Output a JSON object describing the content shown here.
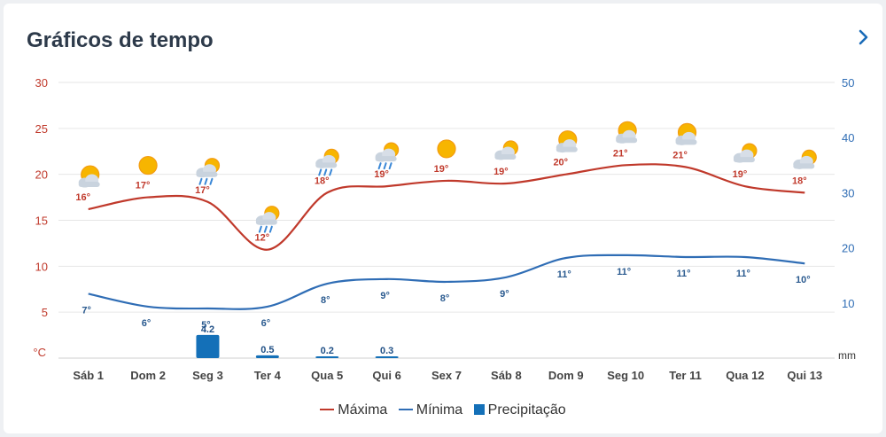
{
  "header": {
    "title": "Gráficos de tempo",
    "next_icon": "chevron-right-icon"
  },
  "chart_data": {
    "type": "line",
    "categories": [
      "Sáb 1",
      "Dom 2",
      "Seg 3",
      "Ter 4",
      "Qua 5",
      "Qui 6",
      "Sex 7",
      "Sáb 8",
      "Dom 9",
      "Seg 10",
      "Ter 11",
      "Qua 12",
      "Qui 13"
    ],
    "series": [
      {
        "name": "Máxima",
        "type": "line",
        "axis": "temperature",
        "color": "#c0392b",
        "values": [
          16,
          17,
          17,
          12,
          18,
          19,
          19,
          19,
          20,
          21,
          21,
          19,
          18
        ],
        "data_values": [
          16.2,
          17.5,
          17.0,
          11.8,
          18.0,
          18.7,
          19.3,
          19.0,
          20.0,
          21.0,
          20.8,
          18.7,
          18.0
        ]
      },
      {
        "name": "Mínima",
        "type": "line",
        "axis": "temperature",
        "color": "#2f6db5",
        "values": [
          7,
          6,
          5,
          6,
          8,
          9,
          8,
          9,
          11,
          11,
          11,
          11,
          10
        ],
        "data_values": [
          7.0,
          5.6,
          5.4,
          5.6,
          8.1,
          8.6,
          8.3,
          8.8,
          10.9,
          11.2,
          11.0,
          11.0,
          10.3
        ]
      },
      {
        "name": "Precipitação",
        "type": "bar",
        "axis": "precipitation",
        "color": "#1470b8",
        "values": [
          null,
          null,
          4.2,
          0.5,
          0.2,
          0.3,
          null,
          null,
          null,
          null,
          null,
          null,
          null
        ]
      }
    ],
    "y_left": {
      "unit": "°C",
      "ylim": [
        0,
        30
      ],
      "ticks": [
        5,
        10,
        15,
        20,
        25,
        30
      ],
      "color": "#c0392b"
    },
    "y_right": {
      "unit": "mm",
      "ylim": [
        0,
        50
      ],
      "ticks": [
        10,
        20,
        30,
        40,
        50
      ],
      "color": "#2f6db5"
    },
    "grid": true,
    "legend_position": "bottom-center",
    "weather_icons": [
      "partly-cloudy-icon",
      "sun-icon",
      "rain-sun-icon",
      "rain-sun-icon",
      "rain-sun-icon",
      "rain-sun-icon",
      "sun-icon",
      "sun-behind-cloud-icon",
      "partly-cloudy-icon",
      "partly-cloudy-icon",
      "partly-cloudy-icon",
      "sun-behind-cloud-icon",
      "sun-behind-cloud-icon"
    ]
  }
}
